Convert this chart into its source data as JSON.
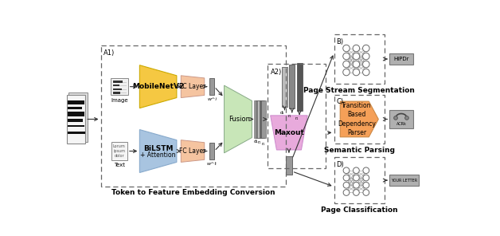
{
  "title": "Token to Feature Embedding Conversion",
  "bg_color": "#ffffff",
  "fig_width": 6.28,
  "fig_height": 2.96,
  "sections": {
    "B_label": "B)",
    "C_label": "C)",
    "D_label": "D)",
    "A1_label": "A1)",
    "A2_label": "A2)",
    "B_title": "Page Stream Segmentation",
    "C_title": "Semantic Parsing",
    "D_title": "Page Classification",
    "C_box_text": "Transition\nBased\nDependency\nParser"
  },
  "colors": {
    "yellow_trapezoid": "#F5C842",
    "blue_trapezoid": "#A8C4E0",
    "salmon_fc": "#F5C4A0",
    "green_fusion": "#C8E6B8",
    "pink_maxout": "#E8AADC",
    "orange_pentagon": "#F5A058",
    "dashed_box_color": "#666666",
    "bar_light": "#aaaaaa",
    "bar_mid": "#888888",
    "bar_dark": "#555555",
    "arrow_color": "#333333",
    "doc_bg": "#f0f0f0",
    "doc_fill": "#222222",
    "icon_bg": "#e8e8e8",
    "nn_edge": "#777777",
    "output_icon_bg": "#aaaaaa"
  }
}
